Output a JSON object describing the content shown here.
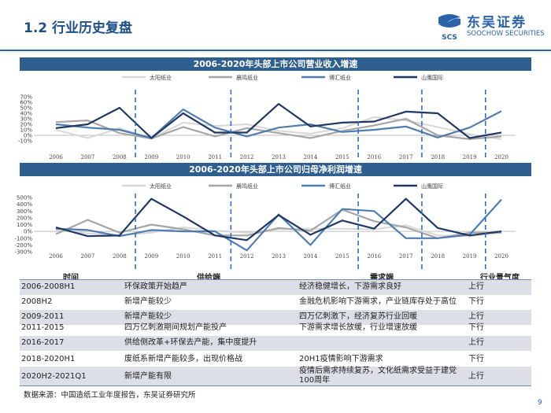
{
  "slide": {
    "title": "1.2 行业历史复盘",
    "logo_cn": "东吴证券",
    "logo_en": "SOOCHOW SECURITIES",
    "logo_mark": "SCS",
    "page_number": "9",
    "source": "数据来源：中国造纸工业年度报告，东吴证券研究所"
  },
  "colors": {
    "brand": "#2a63a8",
    "bar": "#2e5f8e",
    "s1": "#d7d7d7",
    "s2": "#a6a6a6",
    "s3": "#4f7db1",
    "s4": "#1f3864",
    "divider": "#2e6fc4"
  },
  "chart_data": [
    {
      "type": "line",
      "title": "2006-2020年头部上市公司营业收入增速",
      "x": [
        "2006",
        "2007",
        "2008",
        "2009",
        "2010",
        "2011",
        "2012",
        "2013",
        "2014",
        "2015",
        "2016",
        "2017",
        "2018",
        "2019",
        "2020"
      ],
      "y_ticks": [
        "-10%",
        "0%",
        "10%",
        "20%",
        "30%",
        "40%",
        "50%",
        "60%",
        "70%"
      ],
      "ylim": [
        -10,
        70
      ],
      "legend": [
        "太阳纸业",
        "晨鸣纸业",
        "博汇纸业",
        "山鹰国际"
      ],
      "divider_positions": [
        2008.5,
        2011.5,
        2015.5,
        2017.5,
        2019.5
      ],
      "series": [
        {
          "name": "太阳纸业",
          "values": [
            10,
            -5,
            13,
            -6,
            23,
            17,
            20,
            8,
            3,
            13,
            33,
            27,
            15,
            2,
            -7
          ]
        },
        {
          "name": "晨鸣纸业",
          "values": [
            24,
            27,
            4,
            -6,
            15,
            -2,
            13,
            4,
            -5,
            8,
            18,
            30,
            0,
            -7,
            -2
          ]
        },
        {
          "name": "博汇纸业",
          "values": [
            20,
            14,
            10,
            -5,
            47,
            14,
            -2,
            14,
            20,
            6,
            10,
            16,
            -4,
            14,
            44
          ]
        },
        {
          "name": "山鹰国际",
          "values": [
            13,
            20,
            50,
            -5,
            40,
            5,
            5,
            57,
            16,
            23,
            25,
            43,
            40,
            -5,
            5
          ]
        }
      ]
    },
    {
      "type": "line",
      "title": "2006-2020年头部上市公司归母净利润增速",
      "x": [
        "2006",
        "2007",
        "2008",
        "2009",
        "2010",
        "2011",
        "2012",
        "2013",
        "2014",
        "2015",
        "2016",
        "2017",
        "2018",
        "2019",
        "2020"
      ],
      "y_ticks": [
        "-300%",
        "-200%",
        "-100%",
        "0%",
        "100%",
        "200%",
        "300%",
        "400%",
        "500%"
      ],
      "ylim": [
        -300,
        500
      ],
      "legend": [
        "太阳纸业",
        "晨鸣纸业",
        "博汇纸业",
        "山鹰国际"
      ],
      "divider_positions": [
        2008.5,
        2011.5,
        2015.5,
        2017.5,
        2019.5
      ],
      "series": [
        {
          "name": "太阳纸业",
          "values": [
            20,
            -30,
            -60,
            -20,
            60,
            10,
            -20,
            30,
            40,
            40,
            30,
            90,
            -60,
            -70,
            -20
          ]
        },
        {
          "name": "晨鸣纸业",
          "values": [
            -40,
            170,
            -20,
            100,
            30,
            -60,
            -60,
            50,
            10,
            320,
            150,
            60,
            -100,
            -20,
            -20
          ]
        },
        {
          "name": "博汇纸业",
          "values": [
            40,
            20,
            -70,
            20,
            0,
            0,
            -280,
            250,
            -200,
            330,
            300,
            -100,
            -100,
            -50,
            470
          ]
        },
        {
          "name": "山鹰国际",
          "values": [
            60,
            -70,
            -60,
            480,
            220,
            -60,
            -130,
            240,
            -50,
            160,
            40,
            480,
            50,
            -60,
            0
          ]
        }
      ]
    }
  ],
  "table": {
    "headers": {
      "time": "时间",
      "supply": "供给端",
      "demand": "需求端",
      "boom": "行业景气度"
    },
    "rows": [
      {
        "time": "2006-2008H1",
        "supply": "环保政策开始趋严",
        "demand": "经济稳健增长，下游需求良好",
        "boom": "上行"
      },
      {
        "time": "2008H2",
        "supply": "新增产能较少",
        "demand": "金融危机影响下游需求，产业链库存处于高位",
        "boom": "下行"
      },
      {
        "time": "2009-2011",
        "supply": "新增产能较少",
        "demand": "四万亿刺激下，经济复苏行业回暖",
        "boom": "上行"
      },
      {
        "time": "2011-2015",
        "supply": "四万亿刺激期间规划产能投产",
        "demand": "下游需求增长放缓，行业增速放缓",
        "boom": "下行"
      },
      {
        "time": "2016-2017",
        "supply": "供给侧改革+环保去产能，集中度提升",
        "demand": "",
        "boom": "上行"
      },
      {
        "time": "2018-2020H1",
        "supply": "废纸系新增产能较多，出现价格战",
        "demand": "20H1疫情影响下游需求",
        "boom": "下行"
      },
      {
        "time": "2020H2-2021Q1",
        "supply": "新增产能有限",
        "demand": "疫情后需求持续复苏，文化纸需求受益于建党100周年",
        "boom": "上行"
      }
    ]
  }
}
